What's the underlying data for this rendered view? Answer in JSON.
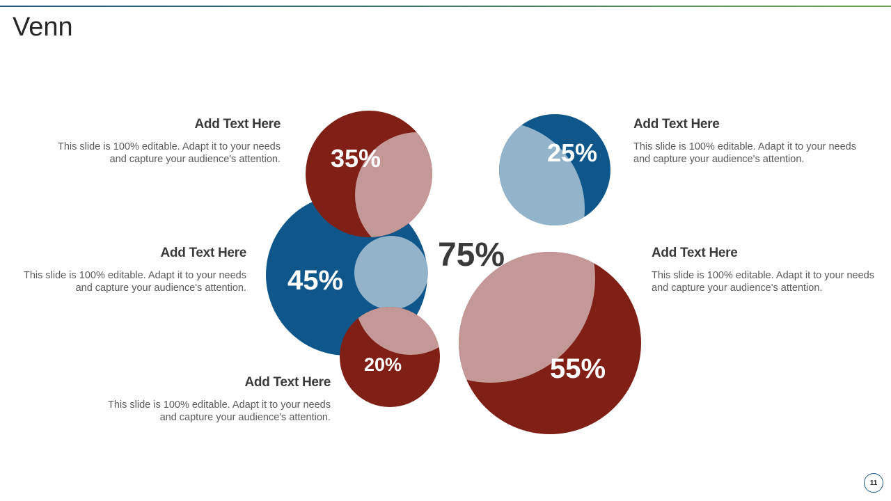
{
  "slide": {
    "title": "Venn",
    "page_number": "11"
  },
  "diagram": {
    "center_label": "75%",
    "circles": [
      {
        "label": "35%",
        "color": "#7f1f16"
      },
      {
        "label": "45%",
        "color": "#0f578a"
      },
      {
        "label": "20%",
        "color": "#7f1f16"
      },
      {
        "label": "25%",
        "color": "#0f578a"
      },
      {
        "label": "55%",
        "color": "#7f1f16"
      }
    ],
    "overlap_colors": {
      "red": "#c49896",
      "blue": "#93b3cb"
    }
  },
  "text_blocks": [
    {
      "heading": "Add Text Here",
      "body": "This slide is 100% editable. Adapt it to your needs and capture your audience's attention."
    },
    {
      "heading": "Add Text Here",
      "body": "This slide is 100% editable. Adapt it to your needs and capture your audience's attention."
    },
    {
      "heading": "Add Text Here",
      "body": "This slide is 100% editable. Adapt it to your needs and capture your audience's attention."
    },
    {
      "heading": "Add Text Here",
      "body": "This slide is 100% editable. Adapt it to your needs and capture your audience's attention."
    },
    {
      "heading": "Add Text Here",
      "body": "This slide is 100% editable. Adapt it to your needs and capture your audience's attention."
    }
  ]
}
